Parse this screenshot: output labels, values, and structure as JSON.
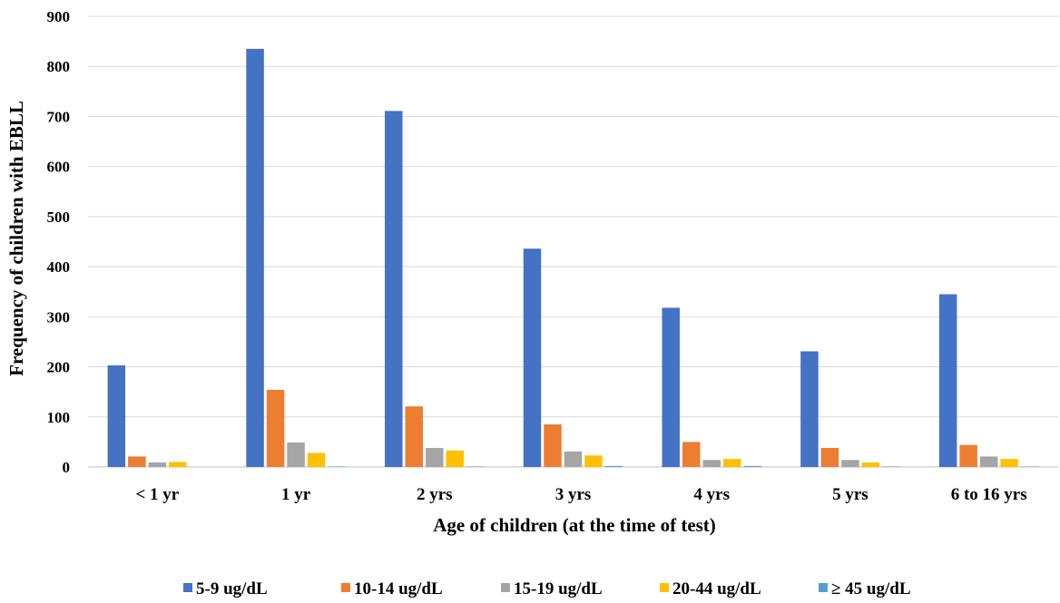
{
  "chart_data": {
    "type": "bar",
    "title": "",
    "xlabel": "Age of children (at the time of test)",
    "ylabel": "Frequency of children with EBLL",
    "ylim": [
      0,
      900
    ],
    "yticks": [
      0,
      100,
      200,
      300,
      400,
      500,
      600,
      700,
      800,
      900
    ],
    "grid": true,
    "legend_position": "bottom",
    "categories": [
      "< 1 yr",
      "1 yr",
      "2 yrs",
      "3 yrs",
      "4 yrs",
      "5 yrs",
      "6 to 16 yrs"
    ],
    "series": [
      {
        "name": "5-9 ug/dL",
        "color": "#4472C4",
        "values": [
          203,
          835,
          711,
          436,
          318,
          231,
          345
        ]
      },
      {
        "name": "10-14 ug/dL",
        "color": "#ED7D31",
        "values": [
          21,
          154,
          121,
          85,
          50,
          38,
          44
        ]
      },
      {
        "name": "15-19 ug/dL",
        "color": "#A5A5A5",
        "values": [
          9,
          49,
          38,
          31,
          14,
          14,
          21
        ]
      },
      {
        "name": "20-44 ug/dL",
        "color": "#FFC000",
        "values": [
          10,
          28,
          33,
          23,
          16,
          9,
          16
        ]
      },
      {
        "name": "≥ 45 ug/dL",
        "color": "#5B9BD5",
        "values": [
          0,
          1,
          1,
          2,
          2,
          1,
          1
        ]
      }
    ]
  }
}
